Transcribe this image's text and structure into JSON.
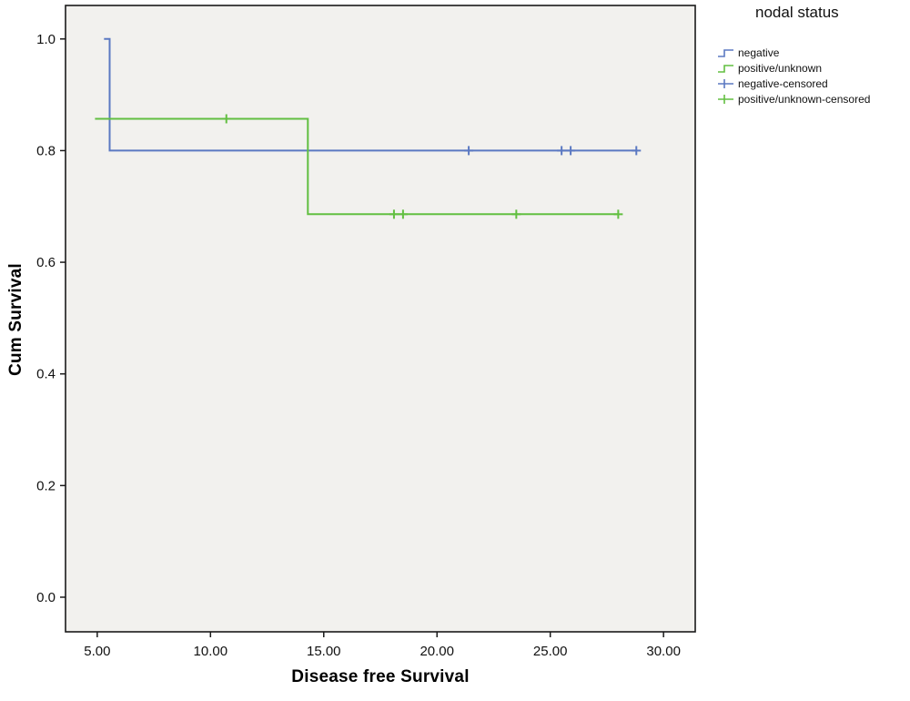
{
  "chart_data": {
    "type": "line",
    "subtype": "kaplan-meier-step",
    "title": "",
    "xlabel": "Disease free Survival",
    "ylabel": "Cum Survival",
    "xlim": [
      3.6,
      31.4
    ],
    "ylim": [
      -0.062,
      1.06
    ],
    "xticks": [
      5,
      10,
      15,
      20,
      25,
      30
    ],
    "xtick_labels": [
      "5.00",
      "10.00",
      "15.00",
      "20.00",
      "25.00",
      "30.00"
    ],
    "yticks": [
      0.0,
      0.2,
      0.4,
      0.6,
      0.8,
      1.0
    ],
    "ytick_labels": [
      "0.0",
      "0.2",
      "0.4",
      "0.6",
      "0.8",
      "1.0"
    ],
    "plot_bg": "#f2f1ee",
    "frame_color": "#1a1a1a",
    "grid": false,
    "legend_position": "top-right-outside",
    "series": [
      {
        "name": "negative",
        "color": "#5b79c2",
        "points": [
          [
            5.3,
            1.0
          ],
          [
            5.55,
            1.0
          ],
          [
            5.55,
            0.8
          ],
          [
            28.8,
            0.8
          ]
        ],
        "censored": [
          [
            21.4,
            0.8
          ],
          [
            25.5,
            0.8
          ],
          [
            25.9,
            0.8
          ],
          [
            28.8,
            0.8
          ]
        ]
      },
      {
        "name": "positive/unknown",
        "color": "#62bf41",
        "points": [
          [
            4.9,
            0.857
          ],
          [
            14.3,
            0.857
          ],
          [
            14.3,
            0.686
          ],
          [
            28.0,
            0.686
          ]
        ],
        "censored": [
          [
            10.7,
            0.857
          ],
          [
            18.1,
            0.686
          ],
          [
            18.5,
            0.686
          ],
          [
            23.5,
            0.686
          ],
          [
            28.0,
            0.686
          ]
        ]
      }
    ],
    "legend": {
      "title": "nodal status",
      "entries": [
        {
          "label": "negative",
          "color": "#5b79c2",
          "glyph": "step"
        },
        {
          "label": "positive/unknown",
          "color": "#62bf41",
          "glyph": "step"
        },
        {
          "label": "negative-censored",
          "color": "#5b79c2",
          "glyph": "censored"
        },
        {
          "label": "positive/unknown-censored",
          "color": "#62bf41",
          "glyph": "censored"
        }
      ]
    }
  }
}
